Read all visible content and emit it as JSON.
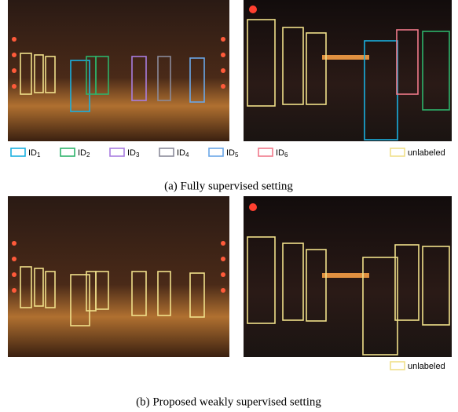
{
  "legend": {
    "items": [
      {
        "label": "ID",
        "subscript": "1"
      },
      {
        "label": "ID",
        "subscript": "2"
      },
      {
        "label": "ID",
        "subscript": "3"
      },
      {
        "label": "ID",
        "subscript": "4"
      },
      {
        "label": "ID",
        "subscript": "5"
      },
      {
        "label": "ID",
        "subscript": "6"
      }
    ],
    "unlabeled": "unlabeled"
  },
  "captions": {
    "a": "(a)  Fully supervised setting",
    "b": "(b)  Proposed weakly supervised setting"
  },
  "legend_b": {
    "unlabeled": "unlabeled"
  }
}
